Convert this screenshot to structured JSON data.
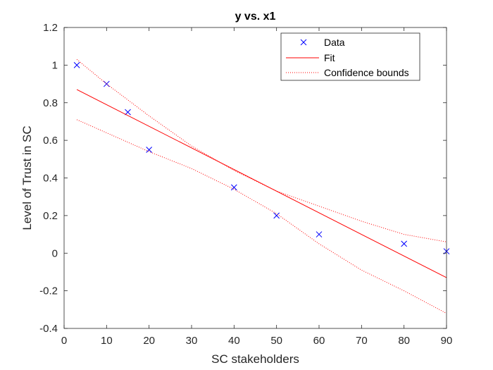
{
  "chart_data": {
    "type": "scatter",
    "title": "y vs. x1",
    "xlabel": "SC stakeholders",
    "ylabel": "Level of Trust in SC",
    "xlim": [
      0,
      90
    ],
    "ylim": [
      -0.4,
      1.2
    ],
    "xticks": [
      0,
      10,
      20,
      30,
      40,
      50,
      60,
      70,
      80,
      90
    ],
    "yticks": [
      -0.4,
      -0.2,
      0,
      0.2,
      0.4,
      0.6,
      0.8,
      1,
      1.2
    ],
    "xtick_labels": [
      "0",
      "10",
      "20",
      "30",
      "40",
      "50",
      "60",
      "70",
      "80",
      "90"
    ],
    "ytick_labels": [
      "-0.4",
      "-0.2",
      "0",
      "0.2",
      "0.4",
      "0.6",
      "0.8",
      "1",
      "1.2"
    ],
    "grid": false,
    "legend_position": "top-right",
    "series": [
      {
        "name": "Data",
        "kind": "markers",
        "marker": "x",
        "color": "#0000ff",
        "x": [
          3,
          10,
          15,
          20,
          40,
          50,
          60,
          80,
          90
        ],
        "y": [
          1.0,
          0.9,
          0.75,
          0.55,
          0.35,
          0.2,
          0.1,
          0.05,
          0.01
        ]
      },
      {
        "name": "Fit",
        "kind": "line",
        "style": "solid",
        "color": "#ff0000",
        "x": [
          3,
          90
        ],
        "y": [
          0.87,
          -0.13
        ]
      },
      {
        "name": "Confidence bounds",
        "kind": "line",
        "style": "dotted",
        "color": "#ff0000",
        "x": [
          3,
          10,
          20,
          30,
          40,
          50,
          60,
          70,
          80,
          90
        ],
        "y": [
          1.03,
          0.9,
          0.73,
          0.57,
          0.44,
          0.33,
          0.25,
          0.17,
          0.1,
          0.06
        ]
      },
      {
        "name": "",
        "kind": "line",
        "style": "dotted",
        "color": "#ff0000",
        "x": [
          3,
          10,
          20,
          30,
          40,
          50,
          60,
          70,
          80,
          90
        ],
        "y": [
          0.71,
          0.64,
          0.54,
          0.45,
          0.34,
          0.21,
          0.05,
          -0.09,
          -0.2,
          -0.32
        ]
      }
    ]
  }
}
